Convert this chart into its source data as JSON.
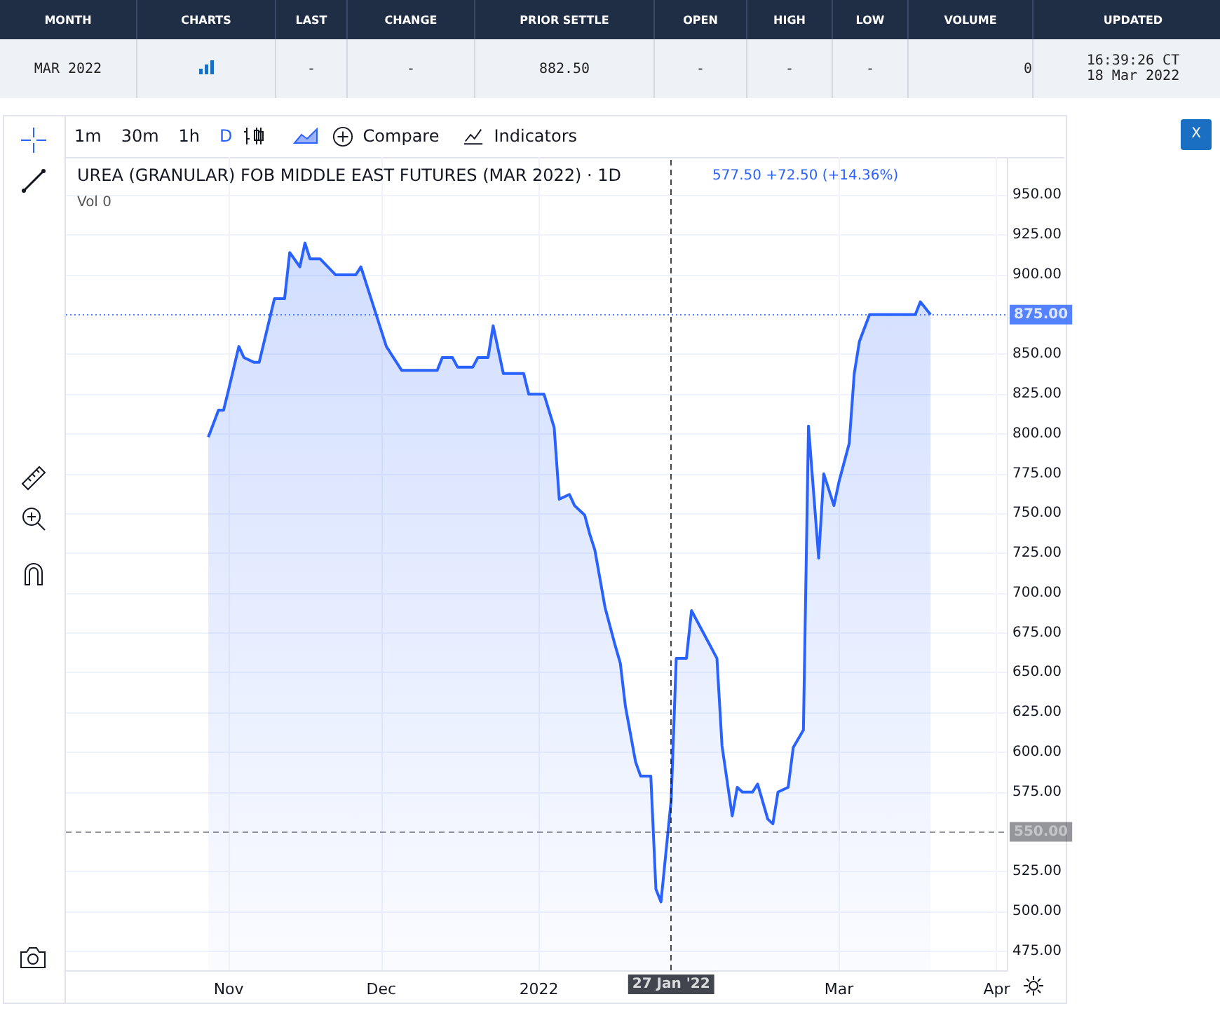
{
  "chart_data": {
    "type": "area",
    "title": "UREA (GRANULAR) FOB MIDDLE EAST FUTURES (MAR 2022) · 1D",
    "subtitle": "577.50 +72.50 (+14.36%)",
    "annotations": [
      "MONTH",
      "CHARTS",
      "LAST",
      "CHANGE",
      "PRIOR SETTLE",
      "OPEN",
      "HIGH",
      "LOW",
      "VOLUME",
      "UPDATED",
      "MAR 2022",
      "-",
      "-",
      "882.50",
      "-",
      "-",
      "-",
      "0",
      "16:39:26 CT\n18 Mar 2022",
      "1m",
      "30m",
      "1h",
      "D",
      "Compare",
      "Indicators",
      "Vol 0",
      "X"
    ],
    "x": [
      "2021-10-28",
      "2021-10-30",
      "2021-10-31",
      "2021-11-01",
      "2021-11-03",
      "2021-11-04",
      "2021-11-06",
      "2021-11-07",
      "2021-11-10",
      "2021-11-12",
      "2021-11-13",
      "2021-11-15",
      "2021-11-16",
      "2021-11-17",
      "2021-11-19",
      "2021-11-22",
      "2021-11-26",
      "2021-11-27",
      "2021-11-30",
      "2021-12-02",
      "2021-12-03",
      "2021-12-05",
      "2021-12-12",
      "2021-12-13",
      "2021-12-15",
      "2021-12-16",
      "2021-12-19",
      "2021-12-20",
      "2021-12-22",
      "2021-12-23",
      "2021-12-25",
      "2021-12-29",
      "2021-12-30",
      "2022-01-02",
      "2022-01-04",
      "2022-01-05",
      "2022-01-07",
      "2022-01-08",
      "2022-01-10",
      "2022-01-11",
      "2022-01-12",
      "2022-01-14",
      "2022-01-16",
      "2022-01-17",
      "2022-01-18",
      "2022-01-20",
      "2022-01-21",
      "2022-01-23",
      "2022-01-24",
      "2022-01-25",
      "2022-01-27",
      "2022-01-28",
      "2022-01-30",
      "2022-01-31",
      "2022-02-05",
      "2022-02-06",
      "2022-02-08",
      "2022-02-09",
      "2022-02-10",
      "2022-02-12",
      "2022-02-13",
      "2022-02-15",
      "2022-02-16",
      "2022-02-17",
      "2022-02-19",
      "2022-02-20",
      "2022-02-22",
      "2022-02-23",
      "2022-02-25",
      "2022-02-26",
      "2022-02-28",
      "2022-03-01",
      "2022-03-03",
      "2022-03-04",
      "2022-03-05",
      "2022-03-07",
      "2022-03-16",
      "2022-03-17",
      "2022-03-19"
    ],
    "series": [
      {
        "color": "#2962ff",
        "values": [
          798,
          815,
          815,
          828,
          855,
          848,
          845,
          845,
          885,
          885,
          914,
          905,
          920,
          910,
          910,
          900,
          900,
          905,
          875,
          855,
          850,
          840,
          840,
          848,
          848,
          842,
          842,
          848,
          848,
          868,
          838,
          838,
          825,
          825,
          804,
          759,
          762,
          755,
          749,
          737,
          727,
          691,
          667,
          656,
          629,
          594,
          585,
          585,
          514,
          506,
          570,
          659,
          659,
          689,
          659,
          604,
          560,
          578,
          575,
          575,
          580,
          558,
          555,
          575,
          578,
          603,
          614,
          805,
          722,
          775,
          755,
          770,
          794,
          838,
          858,
          875,
          875,
          883,
          875
        ]
      }
    ],
    "xlim": [
      "2021-09-30",
      "2022-04-03"
    ],
    "xticks": [
      {
        "value": "2021-11-01",
        "label": "Nov"
      },
      {
        "value": "2021-12-01",
        "label": "Dec"
      },
      {
        "value": "2022-01-01",
        "label": "2022"
      },
      {
        "value": "2022-03-01",
        "label": "Mar"
      },
      {
        "value": "2022-04-01",
        "label": "Apr"
      }
    ],
    "ylim": [
      463,
      974
    ],
    "yticks": [
      {
        "value": 475,
        "label": "475.00"
      },
      {
        "value": 500,
        "label": "500.00"
      },
      {
        "value": 525,
        "label": "525.00"
      },
      {
        "value": 575,
        "label": "575.00"
      },
      {
        "value": 600,
        "label": "600.00"
      },
      {
        "value": 625,
        "label": "625.00"
      },
      {
        "value": 650,
        "label": "650.00"
      },
      {
        "value": 675,
        "label": "675.00"
      },
      {
        "value": 700,
        "label": "700.00"
      },
      {
        "value": 725,
        "label": "725.00"
      },
      {
        "value": 750,
        "label": "750.00"
      },
      {
        "value": 775,
        "label": "775.00"
      },
      {
        "value": 800,
        "label": "800.00"
      },
      {
        "value": 825,
        "label": "825.00"
      },
      {
        "value": 850,
        "label": "850.00"
      },
      {
        "value": 900,
        "label": "900.00"
      },
      {
        "value": 925,
        "label": "925.00"
      },
      {
        "value": 950,
        "label": "950.00"
      }
    ],
    "ref_lines": [
      {
        "axis": "y",
        "value": 875,
        "label": "875.00",
        "color": "#2962ff",
        "line_style": "dotted"
      },
      {
        "axis": "y",
        "value": 550,
        "label": "550.00",
        "color": "#131722",
        "line_style": "dashed"
      },
      {
        "axis": "x",
        "value": "2022-01-27",
        "label": "27 Jan '22",
        "color": "#131722",
        "line_style": "dashed"
      }
    ],
    "grid": true,
    "marker": "none"
  }
}
